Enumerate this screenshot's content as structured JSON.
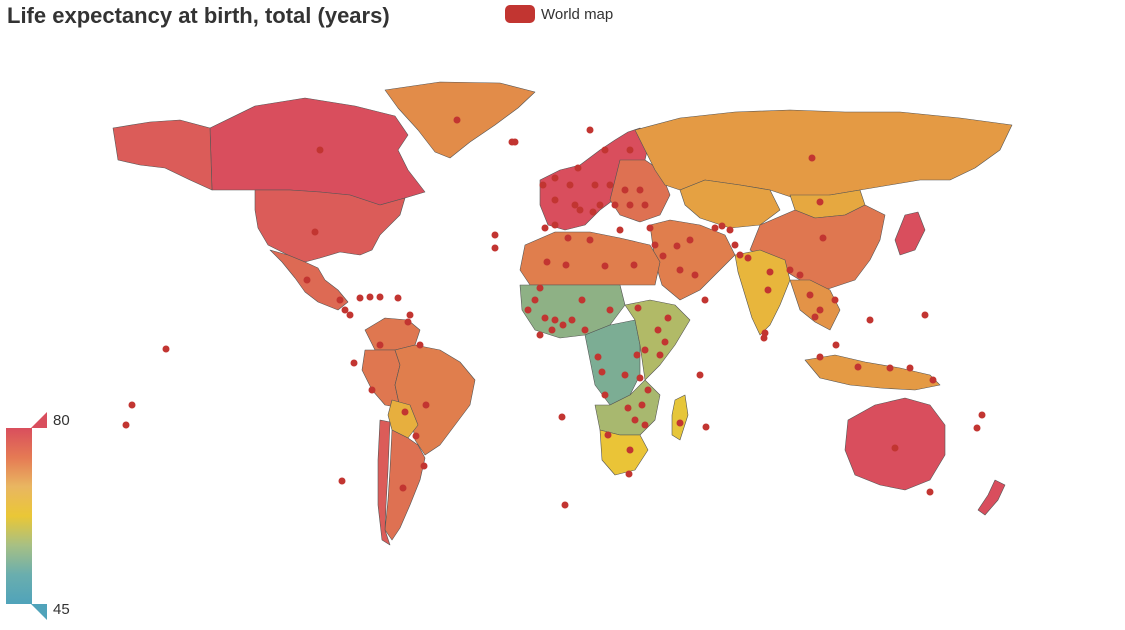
{
  "title": "Life expectancy at birth, total (years)",
  "legend": {
    "label": "World map",
    "color": "#c23531"
  },
  "visual_map": {
    "max": 80,
    "min": 45,
    "max_label": "80",
    "min_label": "45",
    "colors": [
      "#d94e5d",
      "#eac736",
      "#50a3ba"
    ],
    "gradient_stops": [
      "#d94e5d",
      "#e57a54",
      "#e9b661",
      "#eac736",
      "#a7c084",
      "#6aaeae",
      "#50a3ba"
    ]
  },
  "chart_data": {
    "type": "choropleth",
    "title": "Life expectancy at birth, total (years)",
    "series": [
      {
        "name": "World map",
        "map": "world"
      }
    ],
    "visual_map": {
      "min": 45,
      "max": 80,
      "colors": [
        "#d94e5d",
        "#eac736",
        "#50a3ba"
      ]
    },
    "regions": [
      {
        "name": "Canada",
        "value": 80
      },
      {
        "name": "United States",
        "value": 78
      },
      {
        "name": "Mexico",
        "value": 76
      },
      {
        "name": "Greenland",
        "value": 71
      },
      {
        "name": "Brazil",
        "value": 73
      },
      {
        "name": "Argentina",
        "value": 75
      },
      {
        "name": "Chile",
        "value": 78
      },
      {
        "name": "Peru",
        "value": 74
      },
      {
        "name": "Colombia",
        "value": 74
      },
      {
        "name": "Venezuela",
        "value": 74
      },
      {
        "name": "Bolivia",
        "value": 66
      },
      {
        "name": "Paraguay",
        "value": 72
      },
      {
        "name": "Europe West",
        "value": 80
      },
      {
        "name": "Europe East",
        "value": 75
      },
      {
        "name": "Russia",
        "value": 69
      },
      {
        "name": "Kazakhstan",
        "value": 68
      },
      {
        "name": "Mongolia",
        "value": 67
      },
      {
        "name": "China",
        "value": 74
      },
      {
        "name": "India",
        "value": 65
      },
      {
        "name": "Middle East",
        "value": 73
      },
      {
        "name": "Southeast Asia",
        "value": 70
      },
      {
        "name": "Japan",
        "value": 83
      },
      {
        "name": "Australia",
        "value": 82
      },
      {
        "name": "New Zealand",
        "value": 81
      },
      {
        "name": "Indonesia",
        "value": 69
      },
      {
        "name": "North Africa",
        "value": 73
      },
      {
        "name": "West Africa",
        "value": 52
      },
      {
        "name": "Central Africa",
        "value": 50
      },
      {
        "name": "East Africa",
        "value": 56
      },
      {
        "name": "Southern Africa",
        "value": 55
      },
      {
        "name": "South Africa",
        "value": 63
      },
      {
        "name": "Madagascar",
        "value": 62
      }
    ]
  }
}
